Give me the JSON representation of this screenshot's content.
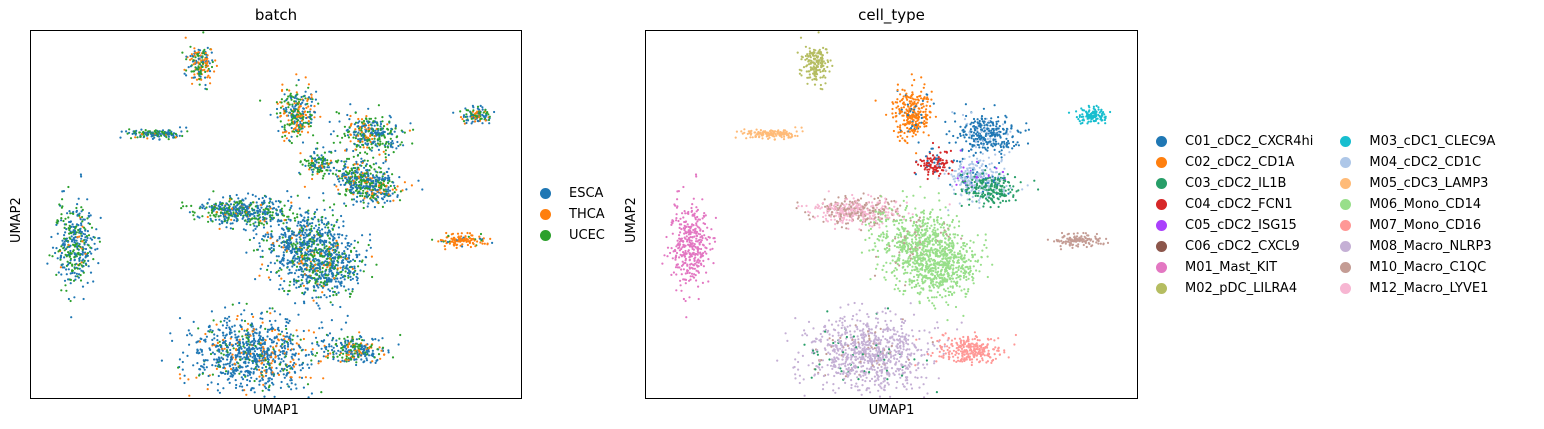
{
  "chart_data": [
    {
      "type": "scatter",
      "title": "batch",
      "xlabel": "UMAP1",
      "ylabel": "UMAP2",
      "legend_placement": "right",
      "grid": false,
      "series": [
        {
          "name": "ESCA",
          "color": "#1f77b4"
        },
        {
          "name": "THCA",
          "color": "#ff7f0e"
        },
        {
          "name": "UCEC",
          "color": "#2ca02c"
        }
      ]
    },
    {
      "type": "scatter",
      "title": "cell_type",
      "xlabel": "UMAP1",
      "ylabel": "UMAP2",
      "legend_placement": "right",
      "grid": false,
      "series": [
        {
          "name": "C01_cDC2_CXCR4hi",
          "color": "#1f77b4"
        },
        {
          "name": "C02_cDC2_CD1A",
          "color": "#ff7f0e"
        },
        {
          "name": "C03_cDC2_IL1B",
          "color": "#279e68"
        },
        {
          "name": "C04_cDC2_FCN1",
          "color": "#d62728"
        },
        {
          "name": "C05_cDC2_ISG15",
          "color": "#aa40fc"
        },
        {
          "name": "C06_cDC2_CXCL9",
          "color": "#8c564b"
        },
        {
          "name": "M01_Mast_KIT",
          "color": "#e377c2"
        },
        {
          "name": "M02_pDC_LILRA4",
          "color": "#b5bd61"
        },
        {
          "name": "M03_cDC1_CLEC9A",
          "color": "#17becf"
        },
        {
          "name": "M04_cDC2_CD1C",
          "color": "#aec7e8"
        },
        {
          "name": "M05_cDC3_LAMP3",
          "color": "#ffbb78"
        },
        {
          "name": "M06_Mono_CD14",
          "color": "#98df8a"
        },
        {
          "name": "M07_Mono_CD16",
          "color": "#ff9896"
        },
        {
          "name": "M08_Macro_NLRP3",
          "color": "#c5b0d5"
        },
        {
          "name": "M10_Macro_C1QC",
          "color": "#c49c94"
        },
        {
          "name": "M12_Macro_LYVE1",
          "color": "#f7b6d2"
        }
      ]
    }
  ]
}
